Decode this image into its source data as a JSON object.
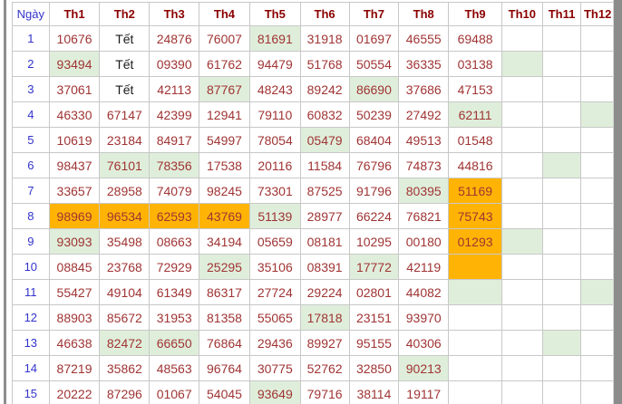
{
  "table": {
    "corner_label": "Ngày",
    "columns": [
      "Th1",
      "Th2",
      "Th3",
      "Th4",
      "Th5",
      "Th6",
      "Th7",
      "Th8",
      "Th9",
      "Th10",
      "Th11",
      "Th12"
    ],
    "rows": [
      {
        "day": "1",
        "cells": [
          {
            "v": "10676"
          },
          {
            "v": "Tết",
            "tet": true
          },
          {
            "v": "24876"
          },
          {
            "v": "76007"
          },
          {
            "v": "81691",
            "h": "g"
          },
          {
            "v": "31918"
          },
          {
            "v": "01697"
          },
          {
            "v": "46555"
          },
          {
            "v": "69488"
          },
          {},
          {},
          {}
        ]
      },
      {
        "day": "2",
        "cells": [
          {
            "v": "93494",
            "h": "g"
          },
          {
            "v": "Tết",
            "tet": true
          },
          {
            "v": "09390"
          },
          {
            "v": "61762"
          },
          {
            "v": "94479"
          },
          {
            "v": "51768"
          },
          {
            "v": "50554"
          },
          {
            "v": "36335"
          },
          {
            "v": "03138"
          },
          {
            "h": "g"
          },
          {},
          {}
        ]
      },
      {
        "day": "3",
        "cells": [
          {
            "v": "37061"
          },
          {
            "v": "Tết",
            "tet": true
          },
          {
            "v": "42113"
          },
          {
            "v": "87767",
            "h": "g"
          },
          {
            "v": "48243"
          },
          {
            "v": "89242"
          },
          {
            "v": "86690",
            "h": "g"
          },
          {
            "v": "37686"
          },
          {
            "v": "47153"
          },
          {},
          {},
          {}
        ]
      },
      {
        "day": "4",
        "cells": [
          {
            "v": "46330"
          },
          {
            "v": "67147"
          },
          {
            "v": "42399"
          },
          {
            "v": "12941"
          },
          {
            "v": "79110"
          },
          {
            "v": "60832"
          },
          {
            "v": "50239"
          },
          {
            "v": "27492"
          },
          {
            "v": "62111",
            "h": "g"
          },
          {},
          {},
          {
            "h": "g"
          }
        ]
      },
      {
        "day": "5",
        "cells": [
          {
            "v": "10619"
          },
          {
            "v": "23184"
          },
          {
            "v": "84917"
          },
          {
            "v": "54997"
          },
          {
            "v": "78054"
          },
          {
            "v": "05479",
            "h": "g"
          },
          {
            "v": "68404"
          },
          {
            "v": "49513"
          },
          {
            "v": "01548"
          },
          {},
          {},
          {}
        ]
      },
      {
        "day": "6",
        "cells": [
          {
            "v": "98437"
          },
          {
            "v": "76101",
            "h": "g"
          },
          {
            "v": "78356",
            "h": "g"
          },
          {
            "v": "17538"
          },
          {
            "v": "20116"
          },
          {
            "v": "11584"
          },
          {
            "v": "76796"
          },
          {
            "v": "74873"
          },
          {
            "v": "44816"
          },
          {},
          {
            "h": "g"
          },
          {}
        ]
      },
      {
        "day": "7",
        "cells": [
          {
            "v": "33657"
          },
          {
            "v": "28958"
          },
          {
            "v": "74079"
          },
          {
            "v": "98245"
          },
          {
            "v": "73301"
          },
          {
            "v": "87525"
          },
          {
            "v": "91796"
          },
          {
            "v": "80395",
            "h": "g"
          },
          {
            "v": "51169",
            "h": "o"
          },
          {},
          {},
          {}
        ]
      },
      {
        "day": "8",
        "cells": [
          {
            "v": "98969",
            "h": "o"
          },
          {
            "v": "96534",
            "h": "o"
          },
          {
            "v": "62593",
            "h": "o"
          },
          {
            "v": "43769",
            "h": "o"
          },
          {
            "v": "51139",
            "h": "g"
          },
          {
            "v": "28977"
          },
          {
            "v": "66224"
          },
          {
            "v": "76821"
          },
          {
            "v": "75743",
            "h": "o"
          },
          {},
          {},
          {}
        ]
      },
      {
        "day": "9",
        "cells": [
          {
            "v": "93093",
            "h": "g"
          },
          {
            "v": "35498"
          },
          {
            "v": "08663"
          },
          {
            "v": "34194"
          },
          {
            "v": "05659"
          },
          {
            "v": "08181"
          },
          {
            "v": "10295"
          },
          {
            "v": "00180"
          },
          {
            "v": "01293",
            "h": "o"
          },
          {
            "h": "g"
          },
          {},
          {}
        ]
      },
      {
        "day": "10",
        "cells": [
          {
            "v": "08845"
          },
          {
            "v": "23768"
          },
          {
            "v": "72929"
          },
          {
            "v": "25295",
            "h": "g"
          },
          {
            "v": "35106"
          },
          {
            "v": "08391"
          },
          {
            "v": "17772",
            "h": "g"
          },
          {
            "v": "42119"
          },
          {
            "h": "o"
          },
          {},
          {},
          {}
        ]
      },
      {
        "day": "11",
        "cells": [
          {
            "v": "55427"
          },
          {
            "v": "49104"
          },
          {
            "v": "61349"
          },
          {
            "v": "86317"
          },
          {
            "v": "27724"
          },
          {
            "v": "29224"
          },
          {
            "v": "02801"
          },
          {
            "v": "44082"
          },
          {
            "h": "g"
          },
          {},
          {},
          {
            "h": "g"
          }
        ]
      },
      {
        "day": "12",
        "cells": [
          {
            "v": "88903"
          },
          {
            "v": "85672"
          },
          {
            "v": "31953"
          },
          {
            "v": "81358"
          },
          {
            "v": "55065"
          },
          {
            "v": "17818",
            "h": "g"
          },
          {
            "v": "23151"
          },
          {
            "v": "93970"
          },
          {},
          {},
          {},
          {}
        ]
      },
      {
        "day": "13",
        "cells": [
          {
            "v": "46638"
          },
          {
            "v": "82472",
            "h": "g"
          },
          {
            "v": "66650",
            "h": "g"
          },
          {
            "v": "76864"
          },
          {
            "v": "29436"
          },
          {
            "v": "89927"
          },
          {
            "v": "95155"
          },
          {
            "v": "40306"
          },
          {},
          {},
          {
            "h": "g"
          },
          {}
        ]
      },
      {
        "day": "14",
        "cells": [
          {
            "v": "87219"
          },
          {
            "v": "35862"
          },
          {
            "v": "48563"
          },
          {
            "v": "96764"
          },
          {
            "v": "30775"
          },
          {
            "v": "52762"
          },
          {
            "v": "32850"
          },
          {
            "v": "90213",
            "h": "g"
          },
          {},
          {},
          {},
          {}
        ]
      },
      {
        "day": "15",
        "cells": [
          {
            "v": "20222"
          },
          {
            "v": "87296"
          },
          {
            "v": "01067"
          },
          {
            "v": "54045"
          },
          {
            "v": "93649",
            "h": "g"
          },
          {
            "v": "79716"
          },
          {
            "v": "38114"
          },
          {
            "v": "19117"
          },
          {},
          {},
          {},
          {}
        ]
      }
    ]
  },
  "colors": {
    "highlight_green": "#dfeeda",
    "highlight_orange": "#ffb405",
    "value_text": "#a03434",
    "header_text": "#8b0000",
    "day_text": "#3333cc",
    "tet_text": "#1a1a1a"
  }
}
